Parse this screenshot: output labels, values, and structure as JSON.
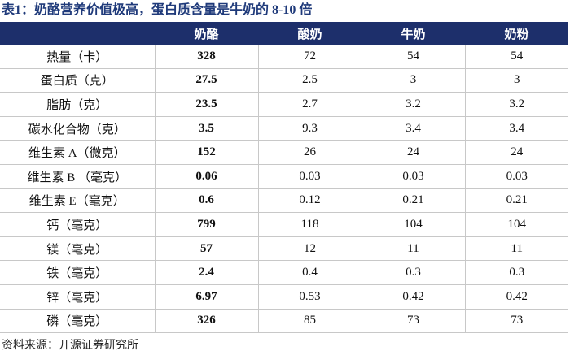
{
  "title": "表1：奶酪营养价值极高，蛋白质含量是牛奶的 8-10 倍",
  "table": {
    "header": [
      "奶酪",
      "酸奶",
      "牛奶",
      "奶粉"
    ],
    "rows": [
      [
        "热量（卡）",
        328,
        72,
        54,
        54
      ],
      [
        "蛋白质（克）",
        27.5,
        2.5,
        3,
        3
      ],
      [
        "脂肪（克）",
        23.5,
        2.7,
        3.2,
        3.2
      ],
      [
        "碳水化合物（克）",
        3.5,
        9.3,
        3.4,
        3.4
      ],
      [
        "维生素 A（微克）",
        152,
        26,
        24,
        24
      ],
      [
        "维生素 B （毫克）",
        0.06,
        0.03,
        0.03,
        0.03
      ],
      [
        "维生素 E（毫克）",
        0.6,
        0.12,
        0.21,
        0.21
      ],
      [
        "钙（毫克）",
        799,
        118,
        104,
        104
      ],
      [
        "镁（毫克）",
        57,
        12,
        11,
        11
      ],
      [
        "铁（毫克）",
        2.4,
        0.4,
        0.3,
        0.3
      ],
      [
        "锌（毫克）",
        6.97,
        0.53,
        0.42,
        0.42
      ],
      [
        "磷（毫克）",
        326,
        85,
        73,
        73
      ]
    ]
  },
  "source": "资料来源：开源证券研究所"
}
